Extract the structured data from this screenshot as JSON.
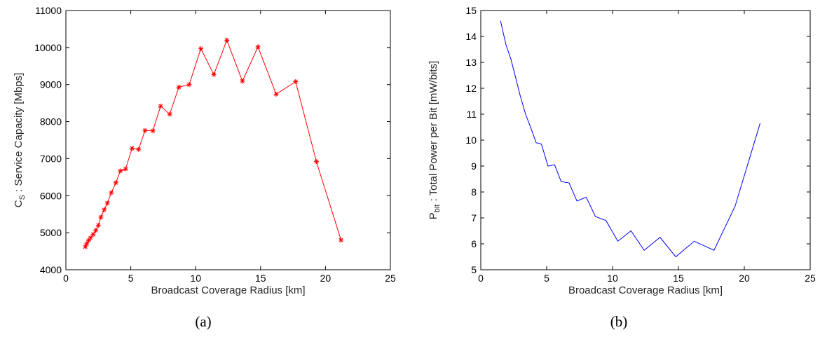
{
  "chart_data": [
    {
      "type": "line",
      "caption": "(a)",
      "xlabel": "Broadcast Coverage Radius [km]",
      "ylabel_main": "C",
      "ylabel_sub": "S",
      "ylabel_rest": " : Service Capacity [Mbps]",
      "xlim": [
        0,
        25
      ],
      "ylim": [
        4000,
        11000
      ],
      "xticks": [
        0,
        5,
        10,
        15,
        20,
        25
      ],
      "yticks": [
        4000,
        5000,
        6000,
        7000,
        8000,
        9000,
        10000,
        11000
      ],
      "grid": false,
      "marker": "asterisk",
      "color": "#ff0000",
      "series": [
        {
          "x": [
            1.5,
            1.6,
            1.75,
            1.9,
            2.1,
            2.3,
            2.5,
            2.7,
            2.95,
            3.2,
            3.5,
            3.85,
            4.2,
            4.6,
            5.1,
            5.6,
            6.1,
            6.7,
            7.3,
            8.0,
            8.7,
            9.5,
            10.4,
            11.4,
            12.4,
            13.6,
            14.8,
            16.2,
            17.7,
            19.3,
            21.2
          ],
          "y": [
            4620,
            4700,
            4790,
            4860,
            4950,
            5060,
            5200,
            5420,
            5620,
            5800,
            6080,
            6350,
            6670,
            6720,
            7280,
            7250,
            7760,
            7750,
            8420,
            8200,
            8930,
            9000,
            9970,
            9270,
            10200,
            9090,
            10020,
            8740,
            9080,
            6920,
            4800
          ]
        }
      ]
    },
    {
      "type": "line",
      "caption": "(b)",
      "xlabel": "Broadcast Coverage Radius [km]",
      "ylabel_main": "P",
      "ylabel_sub": "bit",
      "ylabel_rest": " : Total Power per Bit [mW/bits]",
      "xlim": [
        0,
        25
      ],
      "ylim": [
        5,
        15
      ],
      "xticks": [
        0,
        5,
        10,
        15,
        20,
        25
      ],
      "yticks": [
        5,
        6,
        7,
        8,
        9,
        10,
        11,
        12,
        13,
        14,
        15
      ],
      "grid": false,
      "marker": "none",
      "color": "#0000ff",
      "series": [
        {
          "x": [
            1.5,
            1.9,
            2.3,
            2.7,
            3.0,
            3.4,
            3.85,
            4.2,
            4.6,
            5.1,
            5.6,
            6.1,
            6.7,
            7.3,
            8.0,
            8.7,
            9.5,
            10.4,
            11.4,
            12.4,
            13.6,
            14.8,
            16.2,
            17.7,
            19.3,
            21.2
          ],
          "y": [
            14.6,
            13.7,
            13.1,
            12.3,
            11.7,
            11.0,
            10.4,
            9.9,
            9.85,
            9.0,
            9.05,
            8.4,
            8.35,
            7.65,
            7.8,
            7.05,
            6.9,
            6.1,
            6.5,
            5.75,
            6.25,
            5.5,
            6.1,
            5.75,
            7.45,
            10.65
          ]
        }
      ]
    }
  ]
}
